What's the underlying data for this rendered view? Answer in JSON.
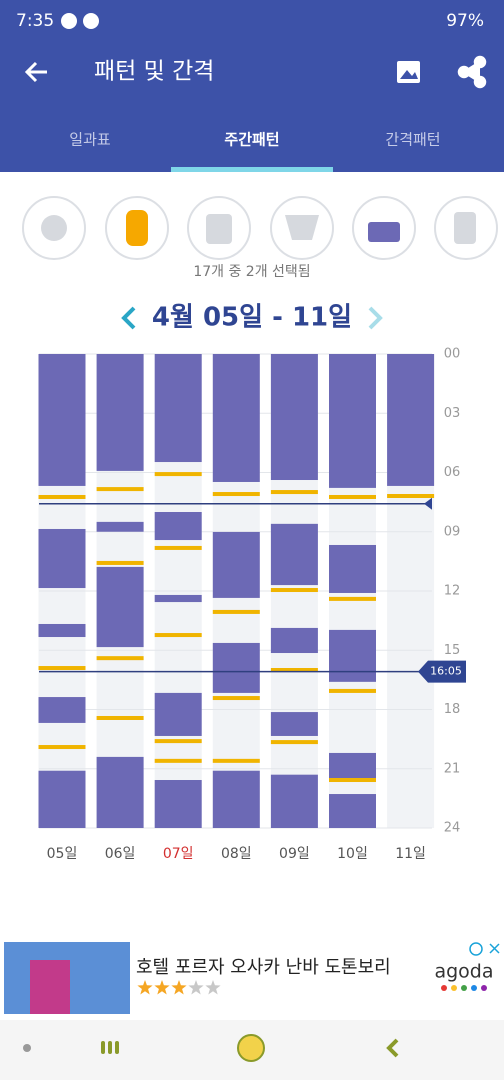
{
  "status": {
    "time": "7:35",
    "battery": "97%"
  },
  "header": {
    "title": "패턴 및 간격"
  },
  "tabs": {
    "items": [
      "일과표",
      "주간패턴",
      "간격패턴"
    ],
    "selected": 1
  },
  "filter": {
    "summary": "17개 중 2개 선택됨"
  },
  "week": {
    "label": "4월 05일 - 11일"
  },
  "chart_data": {
    "type": "timeline",
    "categories": [
      "05일",
      "06일",
      "07일",
      "08일",
      "09일",
      "10일",
      "11일"
    ],
    "highlight_category": 2,
    "highlight_color": "#d32f2f",
    "ylim": [
      0,
      24
    ],
    "yticks": [
      {
        "value": 0,
        "label": "00"
      },
      {
        "value": 3,
        "label": "03"
      },
      {
        "value": 6,
        "label": "06"
      },
      {
        "value": 9,
        "label": "09"
      },
      12,
      15,
      18,
      21,
      24
    ],
    "grid": true,
    "sleep_color": "#6c69b5",
    "feed_color": "#f0b400",
    "sleep": [
      [
        [
          0,
          6.68
        ],
        [
          8.86,
          11.85
        ],
        [
          13.67,
          14.33
        ],
        [
          17.37,
          18.68
        ],
        [
          21.1,
          24
        ]
      ],
      [
        [
          0,
          5.92
        ],
        [
          8.5,
          9.0
        ],
        [
          10.78,
          14.84
        ],
        [
          20.4,
          24
        ]
      ],
      [
        [
          0,
          5.47
        ],
        [
          8.0,
          9.42
        ],
        [
          12.2,
          12.56
        ],
        [
          17.16,
          19.34
        ],
        [
          21.57,
          24
        ]
      ],
      [
        [
          0,
          6.48
        ],
        [
          9.01,
          12.35
        ],
        [
          14.63,
          17.16
        ],
        [
          21.1,
          24
        ]
      ],
      [
        [
          0,
          6.38
        ],
        [
          8.6,
          11.7
        ],
        [
          13.87,
          15.14
        ],
        [
          18.13,
          19.34
        ],
        [
          21.3,
          24
        ]
      ],
      [
        [
          0,
          6.78
        ],
        [
          9.67,
          12.1
        ],
        [
          13.97,
          16.6
        ],
        [
          20.2,
          21.47
        ],
        [
          22.28,
          24
        ]
      ],
      [
        [
          0,
          6.68
        ]
      ]
    ],
    "feeds": [
      [
        7.24,
        15.9,
        19.9
      ],
      [
        6.84,
        10.58,
        15.4,
        18.43
      ],
      [
        6.08,
        9.82,
        14.23,
        19.6,
        20.6
      ],
      [
        7.09,
        13.06,
        17.42,
        20.6
      ],
      [
        6.99,
        11.95,
        16.0,
        19.65
      ],
      [
        7.24,
        12.4,
        17.06,
        21.57
      ],
      [
        7.19
      ]
    ],
    "time_lines": [
      7.583,
      {
        "value": 16.083,
        "label": "16:05"
      }
    ]
  },
  "ad": {
    "title": "호텔 포르자 오사카 난바 도톤보리",
    "brand": "agoda",
    "rating": 3,
    "rating_max": 5
  }
}
